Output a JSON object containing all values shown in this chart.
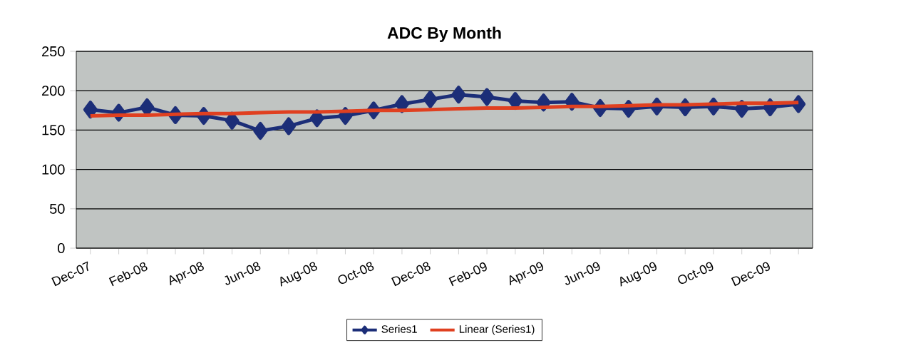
{
  "chart_data": {
    "type": "line",
    "title": "ADC By Month",
    "categories": [
      "Dec-07",
      null,
      "Feb-08",
      null,
      "Apr-08",
      null,
      "Jun-08",
      null,
      "Aug-08",
      null,
      "Oct-08",
      null,
      "Dec-08",
      null,
      "Feb-09",
      null,
      "Apr-09",
      null,
      "Jun-09",
      null,
      "Aug-09",
      null,
      "Oct-09",
      null,
      "Dec-09",
      null
    ],
    "series": [
      {
        "name": "Series1",
        "color": "#1c2e78",
        "marker": "diamond",
        "values": [
          176,
          172,
          179,
          169,
          168,
          162,
          149,
          155,
          165,
          168,
          175,
          183,
          189,
          195,
          192,
          187,
          185,
          186,
          178,
          177,
          180,
          179,
          180,
          177,
          179,
          183
        ]
      },
      {
        "name": "Linear (Series1)",
        "color": "#e04020",
        "marker": "none",
        "values": [
          168,
          169,
          169,
          170,
          171,
          171,
          172,
          173,
          173,
          174,
          175,
          175,
          176,
          177,
          178,
          178,
          179,
          180,
          180,
          181,
          182,
          182,
          183,
          184,
          184,
          185
        ]
      }
    ],
    "ylim": [
      0,
      250
    ],
    "yticks": [
      0,
      50,
      100,
      150,
      200,
      250
    ],
    "grid": "y",
    "legend": "bottom",
    "line_style": "solid"
  }
}
